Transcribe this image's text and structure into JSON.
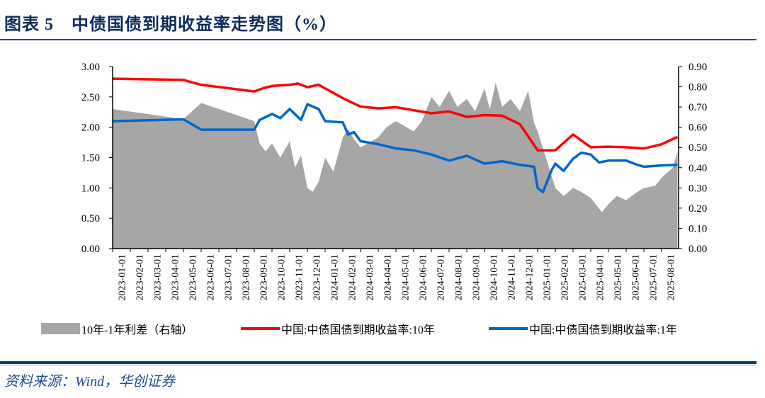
{
  "title": "图表 5　中债国债到期收益率走势图（%）",
  "source": "资料来源：Wind，华创证券",
  "chart_data": {
    "type": "line+area",
    "title": "图表 5　中债国债到期收益率走势图（%）",
    "left_axis": {
      "ylim": [
        0,
        3.0
      ],
      "ticks": [
        "0.00",
        "0.50",
        "1.00",
        "1.50",
        "2.00",
        "2.50",
        "3.00"
      ]
    },
    "right_axis": {
      "ylim": [
        0,
        0.9
      ],
      "ticks": [
        "0.00",
        "0.10",
        "0.20",
        "0.30",
        "0.40",
        "0.50",
        "0.60",
        "0.70",
        "0.80",
        "0.90"
      ]
    },
    "categories": [
      "2023-01-01",
      "2023-02-01",
      "2023-03-01",
      "2023-04-01",
      "2023-05-01",
      "2023-06-01",
      "2023-07-01",
      "2023-08-01",
      "2023-09-01",
      "2023-10-01",
      "2023-11-01",
      "2023-12-01",
      "2024-01-01",
      "2024-02-01",
      "2024-03-01",
      "2024-04-01",
      "2024-05-01",
      "2024-06-01",
      "2024-07-01",
      "2024-08-01",
      "2024-09-01",
      "2024-10-01",
      "2024-11-01",
      "2024-12-01",
      "2025-01-01",
      "2025-02-01",
      "2025-03-01",
      "2025-04-01",
      "2025-05-01",
      "2025-06-01",
      "2025-07-01",
      "2025-08-01"
    ],
    "grid": false,
    "legend": "bottom",
    "series": [
      {
        "name": "10年-1年利差（右轴）",
        "type": "area",
        "axis": "right",
        "color": "#a6a6a6",
        "points": [
          [
            "2023-01-01",
            0.69
          ],
          [
            "2023-05-01",
            0.64
          ],
          [
            "2023-06-01",
            0.72
          ],
          [
            "2023-09-01",
            0.63
          ],
          [
            "2023-09-10",
            0.52
          ],
          [
            "2023-09-20",
            0.48
          ],
          [
            "2023-10-01",
            0.52
          ],
          [
            "2023-10-15",
            0.45
          ],
          [
            "2023-11-01",
            0.53
          ],
          [
            "2023-11-10",
            0.4
          ],
          [
            "2023-11-20",
            0.46
          ],
          [
            "2023-12-01",
            0.3
          ],
          [
            "2023-12-10",
            0.28
          ],
          [
            "2023-12-20",
            0.33
          ],
          [
            "2024-01-01",
            0.45
          ],
          [
            "2024-01-15",
            0.38
          ],
          [
            "2024-02-01",
            0.55
          ],
          [
            "2024-02-10",
            0.59
          ],
          [
            "2024-02-20",
            0.54
          ],
          [
            "2024-03-01",
            0.5
          ],
          [
            "2024-04-01",
            0.55
          ],
          [
            "2024-04-15",
            0.6
          ],
          [
            "2024-05-01",
            0.63
          ],
          [
            "2024-06-01",
            0.58
          ],
          [
            "2024-06-15",
            0.63
          ],
          [
            "2024-07-01",
            0.75
          ],
          [
            "2024-07-15",
            0.7
          ],
          [
            "2024-08-01",
            0.78
          ],
          [
            "2024-08-15",
            0.7
          ],
          [
            "2024-09-01",
            0.74
          ],
          [
            "2024-09-15",
            0.68
          ],
          [
            "2024-10-01",
            0.79
          ],
          [
            "2024-10-10",
            0.69
          ],
          [
            "2024-10-20",
            0.82
          ],
          [
            "2024-11-01",
            0.7
          ],
          [
            "2024-11-15",
            0.74
          ],
          [
            "2024-12-01",
            0.68
          ],
          [
            "2024-12-15",
            0.78
          ],
          [
            "2024-12-25",
            0.62
          ],
          [
            "2025-01-01",
            0.58
          ],
          [
            "2025-01-15",
            0.45
          ],
          [
            "2025-02-01",
            0.3
          ],
          [
            "2025-02-15",
            0.26
          ],
          [
            "2025-03-01",
            0.3
          ],
          [
            "2025-03-15",
            0.28
          ],
          [
            "2025-04-01",
            0.25
          ],
          [
            "2025-04-20",
            0.18
          ],
          [
            "2025-05-01",
            0.22
          ],
          [
            "2025-05-15",
            0.26
          ],
          [
            "2025-06-01",
            0.24
          ],
          [
            "2025-06-20",
            0.28
          ],
          [
            "2025-07-01",
            0.3
          ],
          [
            "2025-07-20",
            0.31
          ],
          [
            "2025-08-01",
            0.35
          ],
          [
            "2025-08-20",
            0.4
          ],
          [
            "2025-08-28",
            0.48
          ]
        ]
      },
      {
        "name": "中国:中债国债到期收益率:10年",
        "type": "line",
        "axis": "left",
        "color": "#ff0000",
        "points": [
          [
            "2023-01-01",
            2.8
          ],
          [
            "2023-05-01",
            2.78
          ],
          [
            "2023-05-15",
            2.74
          ],
          [
            "2023-06-01",
            2.7
          ],
          [
            "2023-09-01",
            2.59
          ],
          [
            "2023-09-15",
            2.64
          ],
          [
            "2023-10-01",
            2.68
          ],
          [
            "2023-11-01",
            2.7
          ],
          [
            "2023-11-15",
            2.72
          ],
          [
            "2023-12-01",
            2.66
          ],
          [
            "2023-12-20",
            2.7
          ],
          [
            "2024-01-01",
            2.64
          ],
          [
            "2024-02-01",
            2.48
          ],
          [
            "2024-03-01",
            2.34
          ],
          [
            "2024-04-01",
            2.31
          ],
          [
            "2024-05-01",
            2.33
          ],
          [
            "2024-06-01",
            2.28
          ],
          [
            "2024-07-01",
            2.23
          ],
          [
            "2024-08-01",
            2.26
          ],
          [
            "2024-09-01",
            2.17
          ],
          [
            "2024-10-01",
            2.2
          ],
          [
            "2024-11-01",
            2.19
          ],
          [
            "2024-12-01",
            2.05
          ],
          [
            "2025-01-01",
            1.62
          ],
          [
            "2025-02-01",
            1.62
          ],
          [
            "2025-03-01",
            1.88
          ],
          [
            "2025-04-01",
            1.67
          ],
          [
            "2025-05-01",
            1.68
          ],
          [
            "2025-06-01",
            1.67
          ],
          [
            "2025-07-01",
            1.65
          ],
          [
            "2025-08-01",
            1.72
          ],
          [
            "2025-08-28",
            1.84
          ]
        ]
      },
      {
        "name": "中国:中债国债到期收益率:1年",
        "type": "line",
        "axis": "left",
        "color": "#0066cc",
        "points": [
          [
            "2023-01-01",
            2.1
          ],
          [
            "2023-05-01",
            2.13
          ],
          [
            "2023-06-01",
            1.96
          ],
          [
            "2023-09-01",
            1.96
          ],
          [
            "2023-09-10",
            2.12
          ],
          [
            "2023-10-01",
            2.22
          ],
          [
            "2023-10-15",
            2.15
          ],
          [
            "2023-11-01",
            2.3
          ],
          [
            "2023-11-20",
            2.12
          ],
          [
            "2023-12-01",
            2.38
          ],
          [
            "2023-12-20",
            2.3
          ],
          [
            "2024-01-01",
            2.1
          ],
          [
            "2024-02-01",
            2.08
          ],
          [
            "2024-02-10",
            1.88
          ],
          [
            "2024-02-20",
            1.92
          ],
          [
            "2024-03-01",
            1.77
          ],
          [
            "2024-04-01",
            1.72
          ],
          [
            "2024-05-01",
            1.65
          ],
          [
            "2024-06-01",
            1.62
          ],
          [
            "2024-07-01",
            1.55
          ],
          [
            "2024-08-01",
            1.45
          ],
          [
            "2024-09-01",
            1.53
          ],
          [
            "2024-10-01",
            1.4
          ],
          [
            "2024-11-01",
            1.44
          ],
          [
            "2024-12-01",
            1.38
          ],
          [
            "2024-12-25",
            1.35
          ],
          [
            "2025-01-01",
            1.0
          ],
          [
            "2025-01-10",
            0.93
          ],
          [
            "2025-01-25",
            1.3
          ],
          [
            "2025-02-01",
            1.4
          ],
          [
            "2025-02-15",
            1.28
          ],
          [
            "2025-03-01",
            1.48
          ],
          [
            "2025-03-15",
            1.58
          ],
          [
            "2025-04-01",
            1.55
          ],
          [
            "2025-04-15",
            1.42
          ],
          [
            "2025-05-01",
            1.45
          ],
          [
            "2025-06-01",
            1.45
          ],
          [
            "2025-06-20",
            1.38
          ],
          [
            "2025-07-01",
            1.35
          ],
          [
            "2025-08-01",
            1.37
          ],
          [
            "2025-08-28",
            1.38
          ]
        ]
      }
    ]
  }
}
